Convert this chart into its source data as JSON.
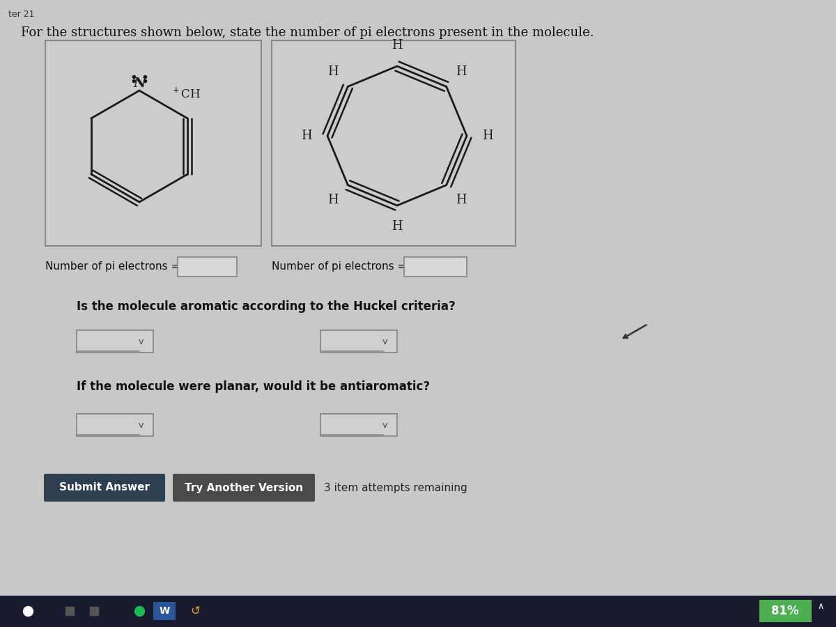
{
  "bg_color": "#c8c8c8",
  "title_text": "For the structures shown below, state the number of pi electrons present in the molecule.",
  "tab_label": "ter 21",
  "label1": "Number of pi electrons =",
  "label2": "Number of pi electrons =",
  "q1_text": "Is the molecule aromatic according to the Huckel criteria?",
  "q2_text": "If the molecule were planar, would it be antiaromatic?",
  "submit_text": "Submit Answer",
  "try_text": "Try Another Version",
  "attempts_text": "3 item attempts remaining",
  "pct_text": "81%",
  "submit_btn_color": "#2c3e50",
  "try_btn_color": "#4a4a4a",
  "footer_bg": "#1a1a2e",
  "box_face": "#cccccc",
  "box_edge": "#888888",
  "input_face": "#d8d8d8",
  "input_edge": "#999999",
  "dropdown_face": "#d0d0d0",
  "dropdown_edge": "#888888",
  "line_color": "#1a1a1a"
}
